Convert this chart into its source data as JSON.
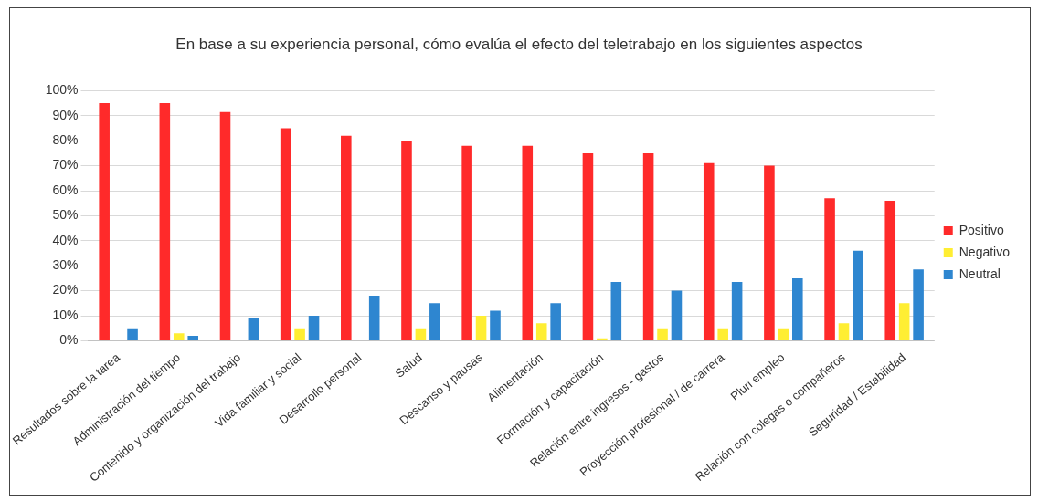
{
  "chart_data": {
    "type": "bar",
    "title": "En base a su experiencia personal, cómo evalúa el efecto del teletrabajo en los siguientes aspectos",
    "categories": [
      "Resultados sobre la tarea",
      "Administración del tiempo",
      "Contenido y organización del trabajo",
      "Vida familiar y social",
      "Desarrollo personal",
      "Salud",
      "Descanso y pausas",
      "Alimentación",
      "Formación y capacitación",
      "Relación entre ingresos - gastos",
      "Proyección profesional / de carrera",
      "Pluri empleo",
      "Relación con colegas o compañeros",
      "Seguridad / Estabilidad"
    ],
    "series": [
      {
        "name": "Positivo",
        "color": "#ff2a2a",
        "values": [
          95,
          95,
          91.5,
          85,
          82,
          80,
          78,
          78,
          75,
          75,
          71,
          70,
          57,
          56
        ]
      },
      {
        "name": "Negativo",
        "color": "#ffee33",
        "values": [
          0,
          3,
          0,
          5,
          0,
          5,
          10,
          7,
          1,
          5,
          5,
          5,
          7,
          15
        ]
      },
      {
        "name": "Neutral",
        "color": "#2e86d0",
        "values": [
          5,
          2,
          9,
          10,
          18,
          15,
          12,
          15,
          23.5,
          20,
          23.5,
          25,
          36,
          28.5
        ]
      }
    ],
    "ylim": [
      0,
      100
    ],
    "yticks": [
      {
        "value": 0,
        "label": "0%"
      },
      {
        "value": 10,
        "label": "10%"
      },
      {
        "value": 20,
        "label": "20%"
      },
      {
        "value": 30,
        "label": "30%"
      },
      {
        "value": 40,
        "label": "40%"
      },
      {
        "value": 50,
        "label": "50%"
      },
      {
        "value": 60,
        "label": "60%"
      },
      {
        "value": 70,
        "label": "70%"
      },
      {
        "value": 80,
        "label": "80%"
      },
      {
        "value": 90,
        "label": "90%"
      },
      {
        "value": 100,
        "label": "100%"
      }
    ],
    "grid": "y",
    "legend": "right"
  }
}
